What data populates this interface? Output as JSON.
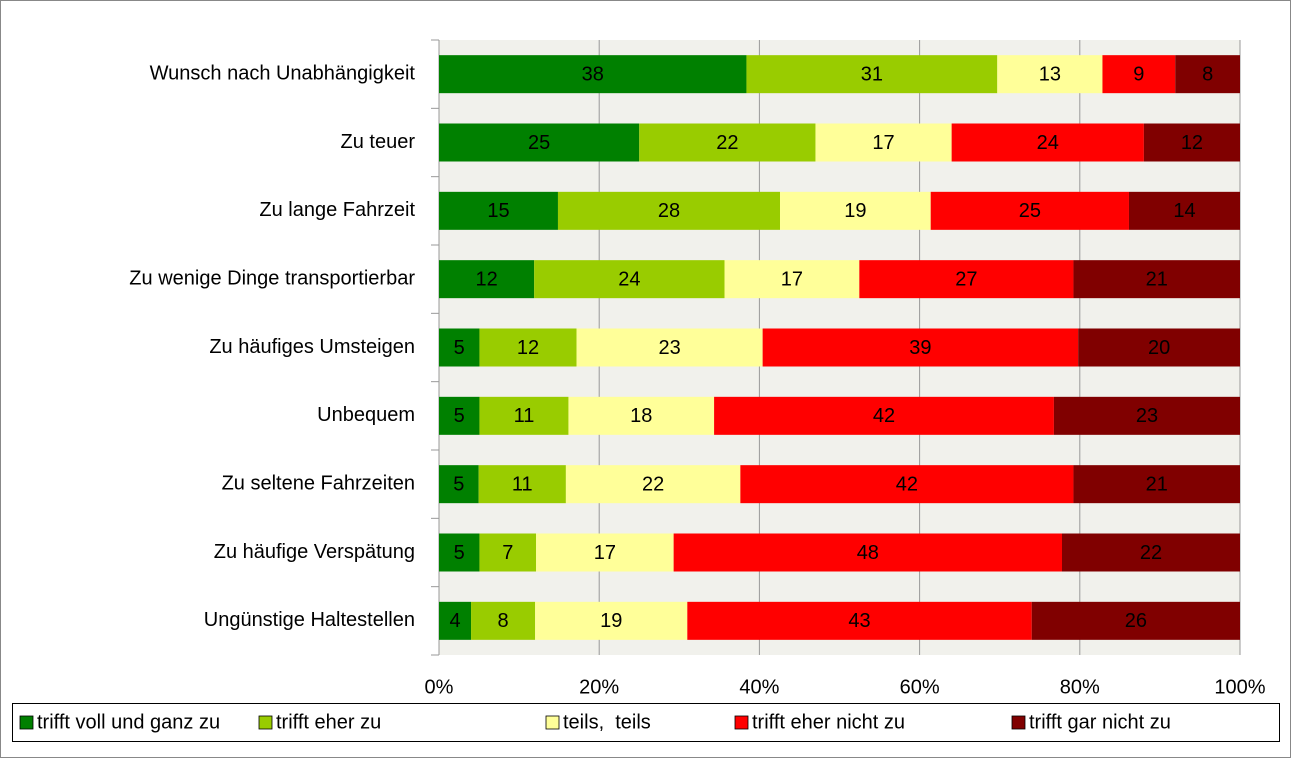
{
  "chart_data": {
    "type": "bar",
    "orientation": "horizontal",
    "stack": "percent",
    "categories": [
      "Wunsch nach Unabhängigkeit",
      "Zu teuer",
      "Zu lange Fahrzeit",
      "Zu wenige Dinge transportierbar",
      "Zu häufiges Umsteigen",
      "Unbequem",
      "Zu seltene Fahrzeiten",
      "Zu häufige Verspätung",
      "Ungünstige Haltestellen"
    ],
    "series": [
      {
        "name": "trifft voll und ganz zu",
        "color": "#008000",
        "values": [
          38,
          25,
          15,
          12,
          5,
          5,
          5,
          5,
          4
        ]
      },
      {
        "name": "trifft eher zu",
        "color": "#99cc00",
        "values": [
          31,
          22,
          28,
          24,
          12,
          11,
          11,
          7,
          8
        ]
      },
      {
        "name": "teils,  teils",
        "color": "#ffff99",
        "values": [
          13,
          17,
          19,
          17,
          23,
          18,
          22,
          17,
          19
        ]
      },
      {
        "name": "trifft eher nicht zu",
        "color": "#ff0000",
        "values": [
          9,
          24,
          25,
          27,
          39,
          42,
          42,
          48,
          43
        ]
      },
      {
        "name": "trifft gar nicht zu",
        "color": "#800000",
        "values": [
          8,
          12,
          14,
          21,
          20,
          23,
          21,
          22,
          26
        ]
      }
    ],
    "xlim": [
      0,
      100
    ],
    "xticks": [
      {
        "value": 0,
        "label": "0%"
      },
      {
        "value": 20,
        "label": "20%"
      },
      {
        "value": 40,
        "label": "40%"
      },
      {
        "value": 60,
        "label": "60%"
      },
      {
        "value": 80,
        "label": "80%"
      },
      {
        "value": 100,
        "label": "100%"
      }
    ],
    "grid": true,
    "legend": "bottom"
  }
}
